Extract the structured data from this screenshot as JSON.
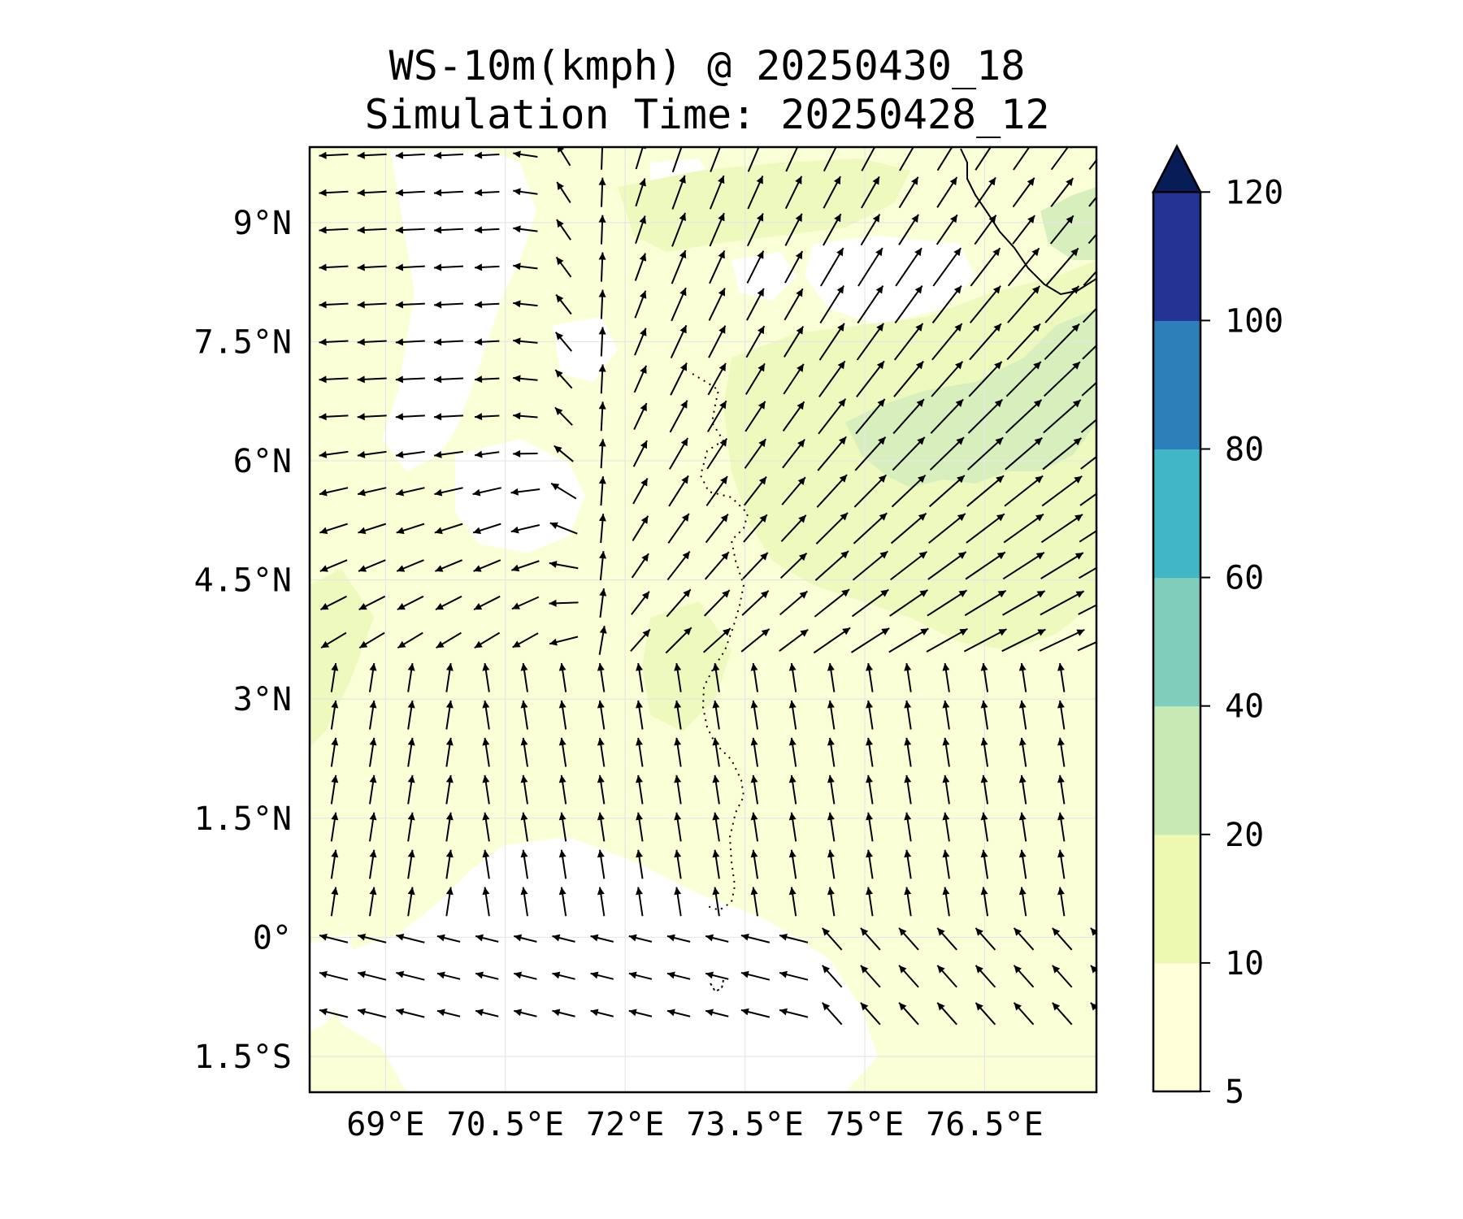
{
  "title": {
    "line1": "WS-10m(kmph) @ 20250430_18",
    "line2": "Simulation Time: 20250428_12"
  },
  "axes": {
    "lon_ticks": [
      {
        "value": 69,
        "label": "69°E"
      },
      {
        "value": 70.5,
        "label": "70.5°E"
      },
      {
        "value": 72,
        "label": "72°E"
      },
      {
        "value": 73.5,
        "label": "73.5°E"
      },
      {
        "value": 75,
        "label": "75°E"
      },
      {
        "value": 76.5,
        "label": "76.5°E"
      }
    ],
    "lat_ticks": [
      {
        "value": 9,
        "label": "9°N"
      },
      {
        "value": 7.5,
        "label": "7.5°N"
      },
      {
        "value": 6,
        "label": "6°N"
      },
      {
        "value": 4.5,
        "label": "4.5°N"
      },
      {
        "value": 3,
        "label": "3°N"
      },
      {
        "value": 1.5,
        "label": "1.5°N"
      },
      {
        "value": 0,
        "label": "0°"
      },
      {
        "value": -1.5,
        "label": "1.5°S"
      }
    ],
    "lon_range": [
      68.05,
      77.9
    ],
    "lat_range": [
      -1.95,
      9.95
    ],
    "grid": true
  },
  "colorbar": {
    "levels": [
      "5",
      "10",
      "20",
      "40",
      "60",
      "80",
      "100",
      "120"
    ],
    "colors": [
      "#ffffd9",
      "#edf8b1",
      "#c7e9b4",
      "#7fcdbb",
      "#41b6c4",
      "#2c7fb8",
      "#253494"
    ],
    "extend_color": "#081d58",
    "extend": "max"
  },
  "colors": {
    "calm": "#ffffff",
    "light": "#fbffd6",
    "moderate": "#eef9be",
    "strong": "#d6efbc",
    "arrow": "#000000",
    "coast": "#000000"
  }
}
